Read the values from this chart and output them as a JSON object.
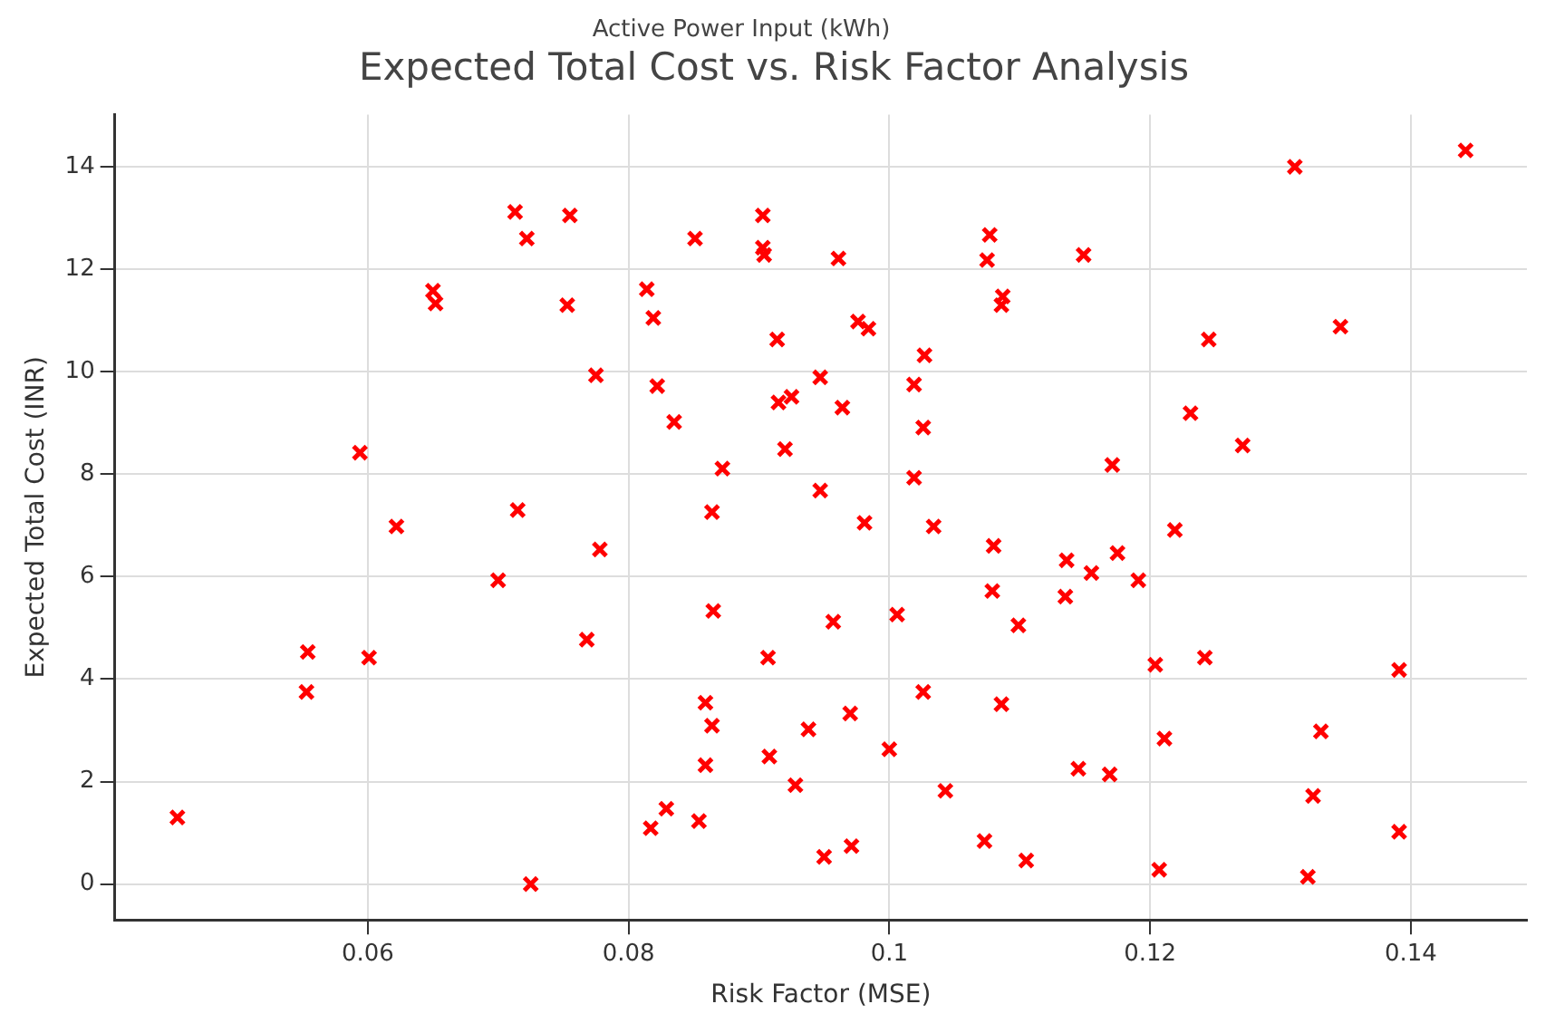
{
  "chart_data": {
    "type": "scatter",
    "title": "Expected Total Cost vs. Risk Factor Analysis",
    "xlabel": "Risk Factor (MSE)",
    "ylabel": "Expected Total Cost (INR)",
    "annotations": [
      "Active Power Input (kWh)"
    ],
    "x": [
      0.0454,
      0.0554,
      0.0553,
      0.0601,
      0.0594,
      0.0622,
      0.065,
      0.0652,
      0.07,
      0.0715,
      0.0713,
      0.0722,
      0.0725,
      0.0755,
      0.0753,
      0.0768,
      0.0775,
      0.0778,
      0.0814,
      0.0819,
      0.0817,
      0.0822,
      0.0829,
      0.0835,
      0.0851,
      0.0854,
      0.0859,
      0.0859,
      0.0864,
      0.0864,
      0.0865,
      0.0872,
      0.0903,
      0.0903,
      0.0904,
      0.0907,
      0.0908,
      0.0914,
      0.0915,
      0.092,
      0.0925,
      0.0928,
      0.0938,
      0.0947,
      0.0947,
      0.095,
      0.0957,
      0.0961,
      0.0964,
      0.097,
      0.0971,
      0.0976,
      0.0984,
      0.0981,
      0.1,
      0.1006,
      0.1019,
      0.1019,
      0.1026,
      0.1027,
      0.1026,
      0.1034,
      0.1043,
      0.1075,
      0.1077,
      0.1073,
      0.1079,
      0.108,
      0.1086,
      0.1086,
      0.1087,
      0.1099,
      0.1105,
      0.1135,
      0.1136,
      0.1145,
      0.1149,
      0.1155,
      0.1169,
      0.1171,
      0.1175,
      0.1191,
      0.1204,
      0.1207,
      0.1211,
      0.1219,
      0.1231,
      0.1242,
      0.1245,
      0.1271,
      0.1311,
      0.1321,
      0.1325,
      0.1331,
      0.1346,
      0.1391,
      0.1391,
      0.1442
    ],
    "series": [
      {
        "color": "#ff0000",
        "values": [
          1.3,
          4.53,
          3.75,
          4.42,
          8.42,
          6.98,
          11.58,
          11.33,
          5.93,
          7.3,
          13.12,
          12.6,
          0.0,
          13.05,
          11.3,
          4.77,
          9.93,
          6.53,
          11.61,
          11.05,
          1.09,
          9.72,
          1.47,
          9.02,
          12.6,
          1.23,
          3.54,
          2.32,
          3.09,
          7.26,
          5.33,
          8.11,
          13.05,
          12.42,
          12.28,
          4.42,
          2.49,
          10.63,
          9.4,
          8.49,
          9.51,
          1.93,
          3.02,
          9.89,
          7.68,
          0.53,
          5.12,
          12.21,
          9.3,
          3.33,
          0.74,
          10.98,
          10.84,
          7.05,
          2.63,
          5.26,
          9.75,
          7.93,
          8.91,
          10.32,
          3.75,
          6.98,
          1.82,
          12.18,
          12.67,
          0.84,
          5.72,
          6.6,
          3.51,
          11.3,
          11.47,
          5.05,
          0.46,
          5.61,
          6.32,
          2.25,
          12.28,
          6.07,
          2.14,
          8.18,
          6.46,
          5.93,
          4.28,
          0.28,
          2.84,
          6.91,
          9.19,
          4.42,
          10.63,
          8.56,
          14.0,
          0.14,
          1.72,
          2.98,
          10.88,
          4.18,
          1.02,
          14.32
        ]
      }
    ],
    "xlim": [
      0.0406,
      0.1489
    ],
    "ylim": [
      -0.7,
      15.02
    ],
    "xticks": [
      0.06,
      0.08,
      0.1,
      0.12,
      0.14
    ],
    "yticks": [
      0,
      2,
      4,
      6,
      8,
      10,
      12,
      14
    ],
    "grid": true,
    "marker": "cross",
    "legend": false
  }
}
